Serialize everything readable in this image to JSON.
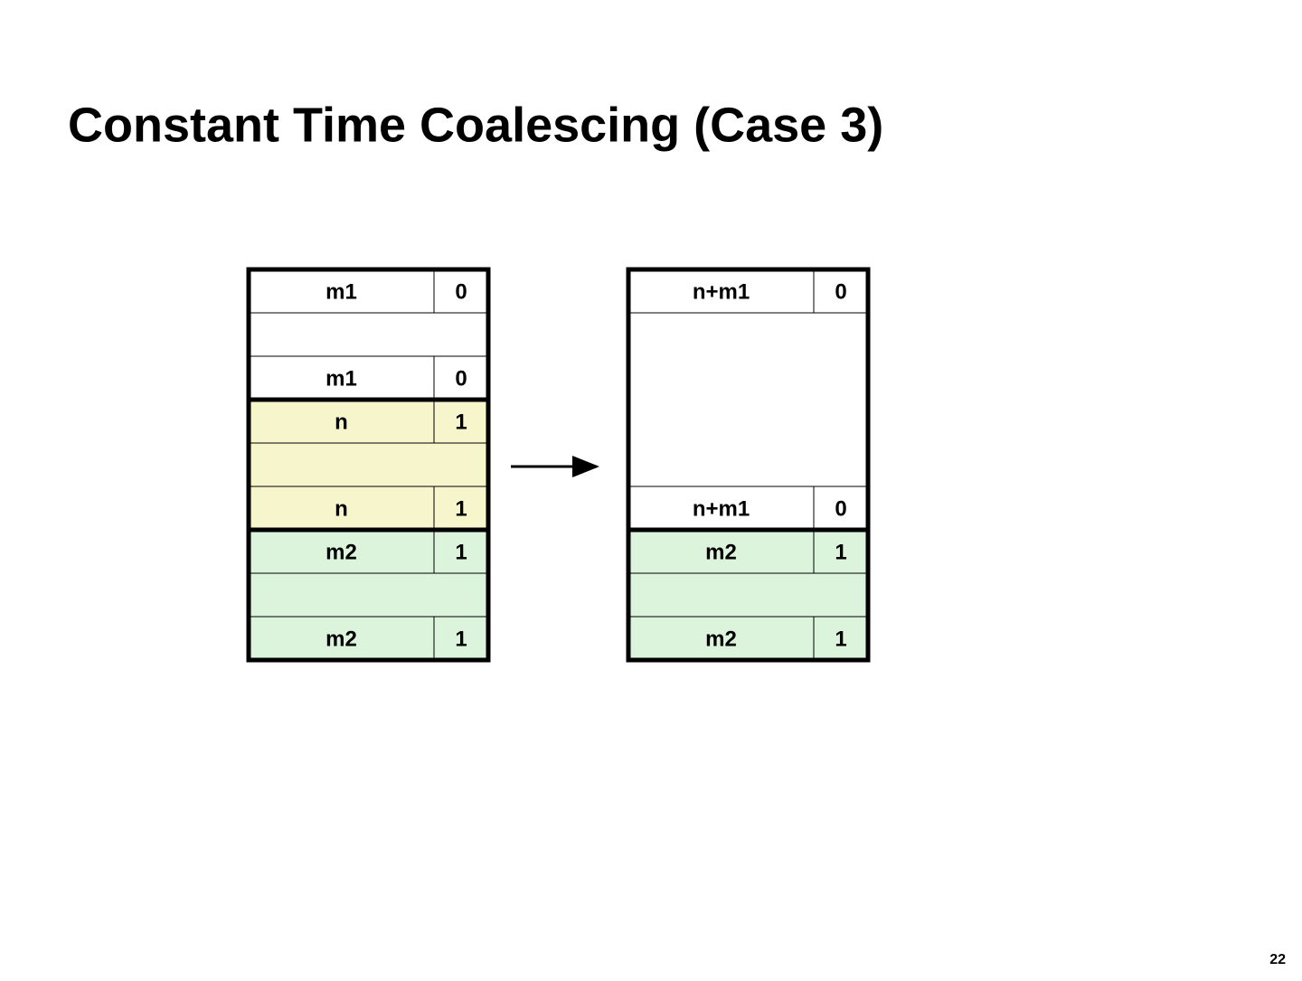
{
  "title": "Constant Time Coalescing (Case 3)",
  "page_number": "22",
  "before": {
    "blocks": [
      {
        "header": {
          "size": "m1",
          "alloc": 0
        },
        "footer": {
          "size": "m1",
          "alloc": 0
        }
      },
      {
        "header": {
          "size": "n",
          "alloc": 1
        },
        "footer": {
          "size": "n",
          "alloc": 1
        }
      },
      {
        "header": {
          "size": "m2",
          "alloc": 1
        },
        "footer": {
          "size": "m2",
          "alloc": 1
        }
      }
    ]
  },
  "after": {
    "blocks": [
      {
        "header": {
          "size": "n+m1",
          "alloc": 0
        },
        "footer": {
          "size": "n+m1",
          "alloc": 0
        }
      },
      {
        "header": {
          "size": "m2",
          "alloc": 1
        },
        "footer": {
          "size": "m2",
          "alloc": 1
        }
      }
    ]
  }
}
